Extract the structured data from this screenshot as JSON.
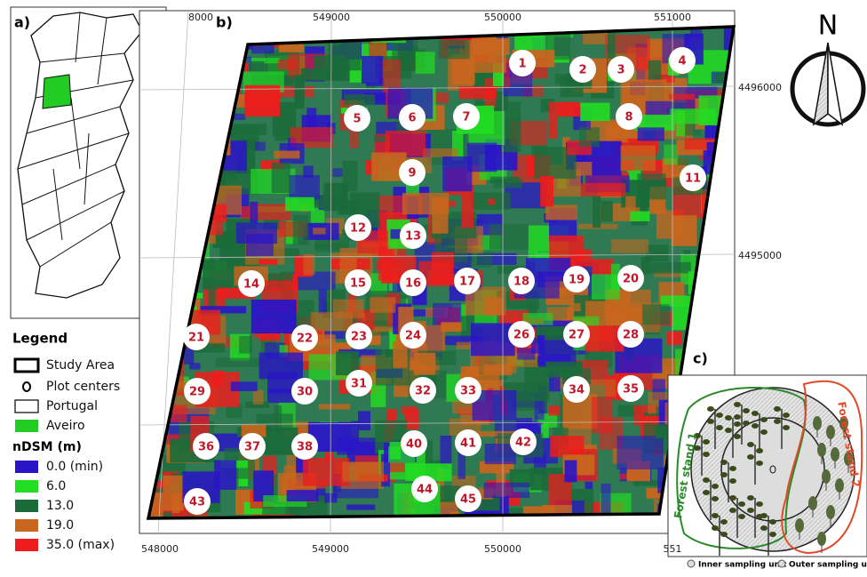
{
  "panels": {
    "a": "a)",
    "b": "b)",
    "c": "c)"
  },
  "map": {
    "top_ticks": [
      "8000",
      "549000",
      "550000",
      "551000"
    ],
    "bottom_ticks": [
      "548000",
      "549000",
      "550000",
      "551"
    ],
    "right_ticks": [
      "4496000",
      "4495000"
    ],
    "north": "N",
    "plots": [
      "1",
      "2",
      "3",
      "4",
      "5",
      "6",
      "7",
      "8",
      "9",
      "11",
      "12",
      "13",
      "14",
      "15",
      "16",
      "17",
      "18",
      "19",
      "20",
      "21",
      "22",
      "23",
      "24",
      "26",
      "27",
      "28",
      "29",
      "30",
      "31",
      "32",
      "33",
      "34",
      "35",
      "36",
      "37",
      "38",
      "40",
      "41",
      "42",
      "43",
      "44",
      "45"
    ]
  },
  "legend": {
    "title": "Legend",
    "items": [
      "Study Area",
      "Plot centers",
      "Portugal",
      "Aveiro"
    ],
    "ndsm_title": "nDSM (m)",
    "ndsm": [
      {
        "label": "0.0 (min)",
        "color": "#2a14c8"
      },
      {
        "label": "6.0",
        "color": "#22dd22"
      },
      {
        "label": "13.0",
        "color": "#1b6b3a"
      },
      {
        "label": "19.0",
        "color": "#c8661e"
      },
      {
        "label": "35.0 (max)",
        "color": "#ee1c1c"
      }
    ]
  },
  "diagram": {
    "stand1": "Forest stand 1",
    "stand2": "Forest stand 2",
    "inner": "Inner sampling unit",
    "outer": "Outer sampling unit"
  }
}
